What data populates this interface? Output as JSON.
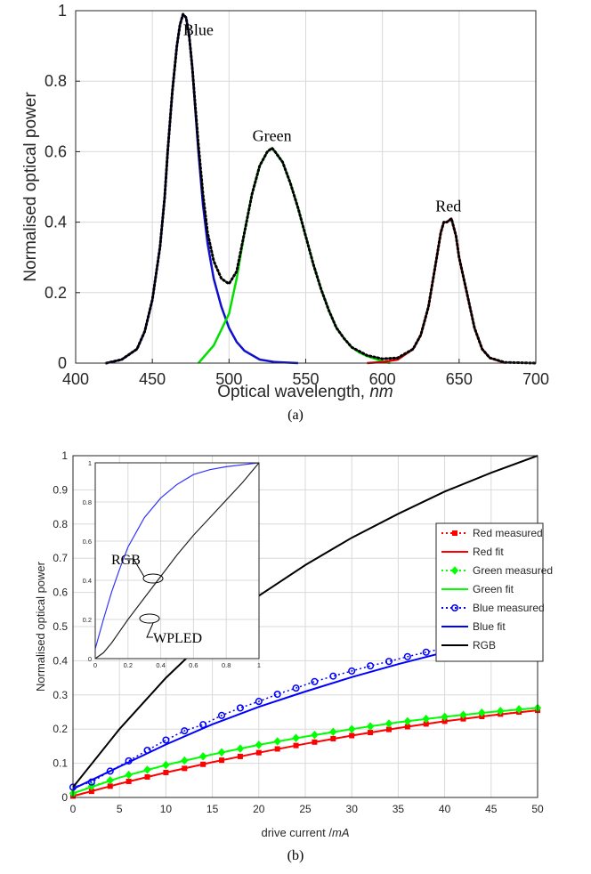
{
  "chart_data": [
    {
      "type": "line",
      "caption": "(a)",
      "xlabel": "Optical wavelength, ",
      "xlabel_unit": "nm",
      "ylabel": "Normalised optical power",
      "xlim": [
        400,
        700
      ],
      "ylim": [
        0,
        1
      ],
      "xticks": [
        400,
        450,
        500,
        550,
        600,
        650,
        700
      ],
      "yticks": [
        0,
        0.2,
        0.4,
        0.6,
        0.8,
        1
      ],
      "grid": true,
      "annotations": [
        {
          "text": "Blue",
          "x": 480,
          "y": 0.93
        },
        {
          "text": "Green",
          "x": 528,
          "y": 0.63
        },
        {
          "text": "Red",
          "x": 643,
          "y": 0.43
        }
      ],
      "series": [
        {
          "color": "#1010cc",
          "style": "solid",
          "x": [
            420,
            430,
            440,
            445,
            450,
            455,
            458,
            460,
            463,
            466,
            468,
            470,
            472,
            474,
            476,
            478,
            480,
            483,
            486,
            490,
            495,
            500,
            505,
            510,
            520,
            530,
            545
          ],
          "y": [
            0,
            0.01,
            0.04,
            0.09,
            0.18,
            0.33,
            0.47,
            0.6,
            0.77,
            0.9,
            0.96,
            0.99,
            0.98,
            0.93,
            0.84,
            0.72,
            0.6,
            0.45,
            0.34,
            0.24,
            0.16,
            0.1,
            0.06,
            0.035,
            0.01,
            0.003,
            0
          ]
        },
        {
          "color": "#00e000",
          "style": "solid",
          "x": [
            480,
            490,
            500,
            505,
            510,
            515,
            520,
            525,
            528,
            530,
            535,
            540,
            545,
            550,
            555,
            560,
            565,
            570,
            575,
            580,
            585,
            590,
            600,
            605
          ],
          "y": [
            0,
            0.05,
            0.14,
            0.24,
            0.37,
            0.48,
            0.56,
            0.6,
            0.61,
            0.6,
            0.57,
            0.51,
            0.44,
            0.36,
            0.28,
            0.21,
            0.15,
            0.1,
            0.07,
            0.045,
            0.03,
            0.02,
            0.005,
            0
          ]
        },
        {
          "color": "#e00000",
          "style": "solid",
          "x": [
            590,
            600,
            610,
            620,
            625,
            630,
            635,
            638,
            640,
            642,
            645,
            648,
            650,
            655,
            660,
            665,
            670,
            680
          ],
          "y": [
            0,
            0.003,
            0.01,
            0.04,
            0.08,
            0.16,
            0.29,
            0.37,
            0.4,
            0.4,
            0.41,
            0.36,
            0.3,
            0.2,
            0.1,
            0.04,
            0.015,
            0
          ]
        },
        {
          "color": "#000000",
          "style": "dotted",
          "x": [
            420,
            430,
            440,
            445,
            450,
            455,
            458,
            460,
            463,
            466,
            468,
            470,
            472,
            474,
            476,
            478,
            480,
            483,
            486,
            490,
            495,
            500,
            505,
            510,
            515,
            520,
            525,
            528,
            530,
            535,
            540,
            545,
            550,
            555,
            560,
            565,
            570,
            575,
            580,
            590,
            600,
            610,
            620,
            625,
            630,
            635,
            638,
            640,
            642,
            645,
            648,
            650,
            655,
            660,
            665,
            670,
            680,
            700
          ],
          "y": [
            0,
            0.01,
            0.04,
            0.09,
            0.18,
            0.33,
            0.47,
            0.6,
            0.77,
            0.9,
            0.96,
            0.99,
            0.98,
            0.93,
            0.84,
            0.73,
            0.62,
            0.48,
            0.37,
            0.29,
            0.24,
            0.225,
            0.26,
            0.37,
            0.48,
            0.56,
            0.6,
            0.61,
            0.6,
            0.57,
            0.51,
            0.44,
            0.36,
            0.28,
            0.21,
            0.15,
            0.1,
            0.07,
            0.045,
            0.022,
            0.012,
            0.015,
            0.04,
            0.08,
            0.16,
            0.29,
            0.37,
            0.4,
            0.4,
            0.41,
            0.36,
            0.3,
            0.2,
            0.1,
            0.04,
            0.015,
            0.002,
            0
          ]
        }
      ]
    },
    {
      "type": "line",
      "caption": "(b)",
      "xlabel": "drive current /",
      "xlabel_unit": "mA",
      "ylabel": "Normalised optical power",
      "xlim": [
        0,
        50
      ],
      "ylim": [
        0,
        1
      ],
      "xticks": [
        0,
        5,
        10,
        15,
        20,
        25,
        30,
        35,
        40,
        45,
        50
      ],
      "yticks": [
        0,
        0.1,
        0.2,
        0.3,
        0.4,
        0.5,
        0.6,
        0.7,
        0.8,
        0.9,
        1
      ],
      "grid": true,
      "legend_position": "right",
      "series": [
        {
          "name": "Red measured",
          "color": "#ff0000",
          "style": "dotted",
          "marker": "square",
          "x": [
            0,
            2,
            4,
            6,
            8,
            10,
            12,
            14,
            16,
            18,
            20,
            22,
            24,
            26,
            28,
            30,
            32,
            34,
            36,
            38,
            40,
            42,
            44,
            46,
            48,
            50
          ],
          "y": [
            0.004,
            0.018,
            0.033,
            0.047,
            0.06,
            0.073,
            0.085,
            0.097,
            0.109,
            0.12,
            0.131,
            0.142,
            0.152,
            0.162,
            0.172,
            0.181,
            0.19,
            0.199,
            0.207,
            0.215,
            0.223,
            0.23,
            0.237,
            0.244,
            0.25,
            0.255
          ]
        },
        {
          "name": "Red fit",
          "color": "#ff0000",
          "style": "solid",
          "x": [
            0,
            5,
            10,
            15,
            20,
            25,
            30,
            35,
            40,
            45,
            50
          ],
          "y": [
            0.004,
            0.04,
            0.073,
            0.103,
            0.131,
            0.157,
            0.181,
            0.203,
            0.223,
            0.24,
            0.255
          ]
        },
        {
          "name": "Green measured",
          "color": "#00ff00",
          "style": "dotted",
          "marker": "diamond",
          "x": [
            0,
            2,
            4,
            6,
            8,
            10,
            12,
            14,
            16,
            18,
            20,
            22,
            24,
            26,
            28,
            30,
            32,
            34,
            36,
            38,
            40,
            42,
            44,
            46,
            48,
            50
          ],
          "y": [
            0.012,
            0.033,
            0.05,
            0.066,
            0.081,
            0.095,
            0.108,
            0.12,
            0.132,
            0.143,
            0.154,
            0.164,
            0.174,
            0.183,
            0.192,
            0.2,
            0.208,
            0.216,
            0.223,
            0.23,
            0.236,
            0.242,
            0.248,
            0.253,
            0.258,
            0.262
          ]
        },
        {
          "name": "Green fit",
          "color": "#00ff00",
          "style": "solid",
          "x": [
            0,
            5,
            10,
            15,
            20,
            25,
            30,
            35,
            40,
            45,
            50
          ],
          "y": [
            0.012,
            0.058,
            0.095,
            0.126,
            0.154,
            0.178,
            0.2,
            0.22,
            0.236,
            0.25,
            0.262
          ]
        },
        {
          "name": "Blue measured",
          "color": "#0000ff",
          "style": "dotted",
          "marker": "circle",
          "x": [
            0,
            2,
            4,
            6,
            8,
            10,
            12,
            14,
            16,
            18,
            20,
            22,
            24,
            26,
            28,
            30,
            32,
            34,
            36,
            38,
            40,
            42,
            44,
            46,
            48,
            50
          ],
          "y": [
            0.03,
            0.045,
            0.077,
            0.107,
            0.138,
            0.168,
            0.195,
            0.213,
            0.24,
            0.262,
            0.281,
            0.302,
            0.32,
            0.339,
            0.355,
            0.37,
            0.385,
            0.398,
            0.412,
            0.425,
            0.437,
            0.448,
            0.459,
            0.468,
            0.477,
            0.488
          ]
        },
        {
          "name": "Blue fit",
          "color": "#0000ff",
          "style": "solid",
          "x": [
            0,
            5,
            10,
            15,
            20,
            25,
            30,
            35,
            40,
            45,
            50
          ],
          "y": [
            0.025,
            0.09,
            0.155,
            0.214,
            0.265,
            0.31,
            0.352,
            0.39,
            0.425,
            0.458,
            0.488
          ]
        },
        {
          "name": "RGB",
          "color": "#000000",
          "style": "solid",
          "x": [
            0,
            5,
            10,
            15,
            20,
            25,
            30,
            35,
            40,
            45,
            50
          ],
          "y": [
            0.03,
            0.2,
            0.35,
            0.48,
            0.59,
            0.68,
            0.76,
            0.83,
            0.895,
            0.95,
            1.0
          ]
        }
      ],
      "inset": {
        "xlim": [
          0,
          1
        ],
        "ylim": [
          0,
          1
        ],
        "xticks": [
          "0",
          "0.2",
          "0.4",
          "0.6",
          "0.8",
          "1"
        ],
        "yticks": [
          "0",
          "0.2",
          "0.4",
          "0.6",
          "0.8",
          "1"
        ],
        "labels": [
          {
            "text": "RGB",
            "target": "RGB"
          },
          {
            "text": "WPLED",
            "target": "WPLED"
          }
        ],
        "series": [
          {
            "id": "RGB",
            "color": "#3333ff",
            "x": [
              0,
              0.05,
              0.1,
              0.15,
              0.2,
              0.3,
              0.4,
              0.5,
              0.6,
              0.7,
              0.8,
              0.9,
              1.0
            ],
            "y": [
              0.05,
              0.2,
              0.34,
              0.46,
              0.57,
              0.72,
              0.82,
              0.89,
              0.94,
              0.965,
              0.98,
              0.99,
              1.0
            ]
          },
          {
            "id": "WPLED",
            "color": "#222222",
            "x": [
              0,
              0.05,
              0.1,
              0.15,
              0.2,
              0.3,
              0.4,
              0.5,
              0.6,
              0.7,
              0.8,
              0.9,
              1.0
            ],
            "y": [
              0.0,
              0.03,
              0.08,
              0.14,
              0.2,
              0.31,
              0.42,
              0.53,
              0.63,
              0.72,
              0.81,
              0.9,
              1.0
            ]
          }
        ]
      }
    }
  ]
}
